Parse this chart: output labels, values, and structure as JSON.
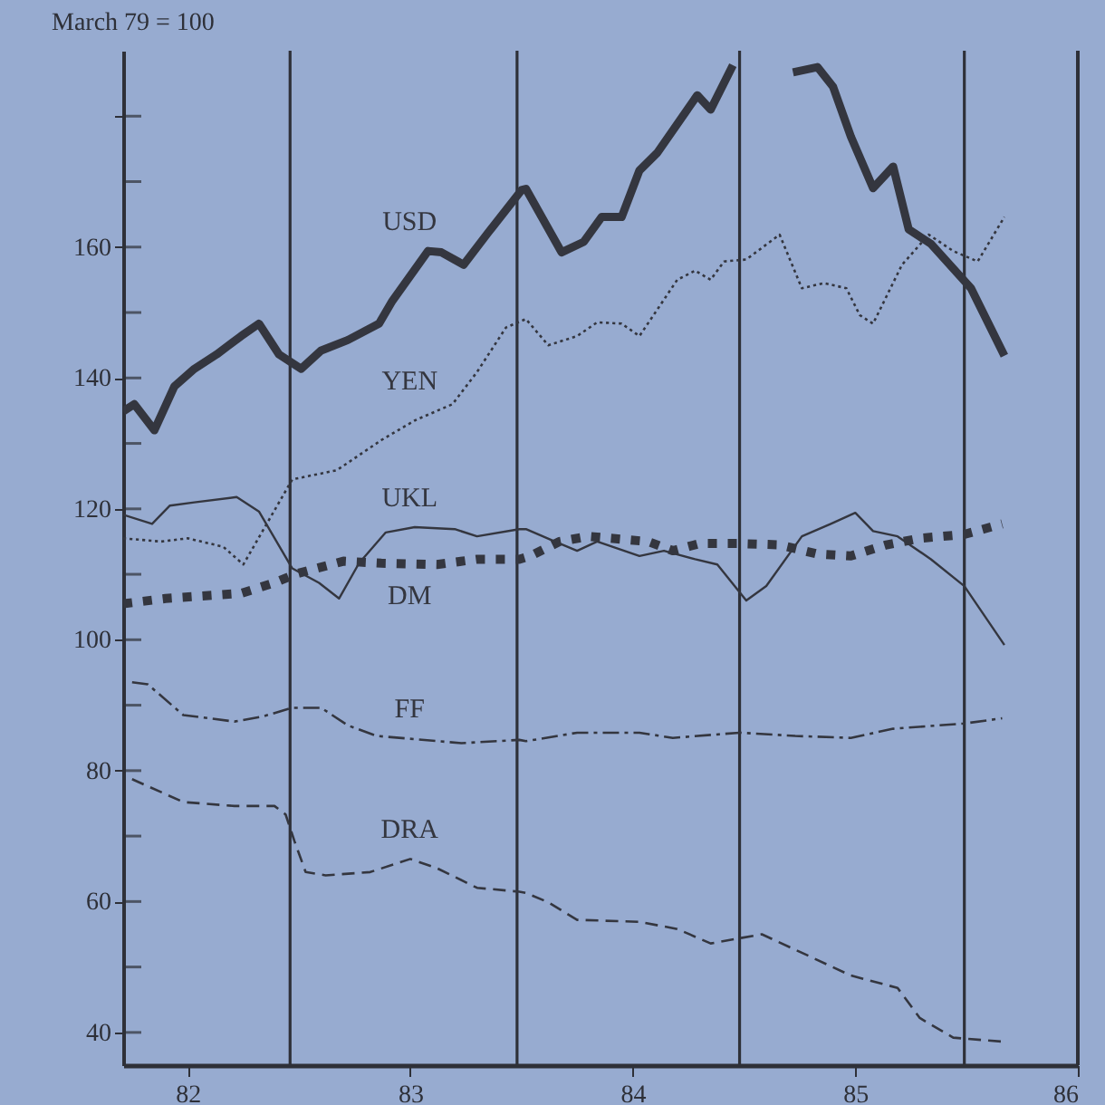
{
  "chart_data": {
    "type": "line",
    "ylabel": "March 79 = 100",
    "legend": false,
    "grid": false,
    "xlim": [
      81.71,
      86
    ],
    "ylim": [
      35,
      190
    ],
    "xticks": [
      82,
      83,
      84,
      85,
      86
    ],
    "yticks": [
      40,
      {
        "value": 50,
        "label": null
      },
      60,
      {
        "value": 70,
        "label": null
      },
      80,
      {
        "value": 90,
        "label": null
      },
      100,
      {
        "value": 110,
        "label": null
      },
      120,
      {
        "value": 130,
        "label": null
      },
      140,
      {
        "value": 150,
        "label": null
      },
      160,
      {
        "value": 170,
        "label": null
      },
      {
        "value": 180,
        "label": null
      }
    ],
    "ref_lines": [
      {
        "axis": "x",
        "value": 82.46,
        "color": "#2e3038"
      },
      {
        "axis": "x",
        "value": 83.48,
        "color": "#2e3038"
      },
      {
        "axis": "x",
        "value": 84.48,
        "color": "#2e3038"
      },
      {
        "axis": "x",
        "value": 85.49,
        "color": "#2e3038"
      }
    ],
    "series": [
      {
        "name": "USD",
        "color": "#34363f",
        "line_style": "solid",
        "x": [
          81.71,
          81.76,
          81.85,
          81.94,
          82.03,
          82.13,
          82.24,
          82.32,
          82.41,
          82.51,
          82.6,
          82.72,
          82.86,
          82.92,
          83.08,
          83.14,
          83.24,
          83.35,
          83.5,
          83.52,
          83.68,
          83.78,
          83.86,
          83.95,
          84.03,
          84.11,
          84.29,
          84.35,
          84.45,
          84.51,
          84.6,
          84.7,
          84.72,
          84.83,
          84.9,
          84.98,
          85.08,
          85.17,
          85.24,
          85.34,
          85.52,
          85.67
        ],
        "values": [
          134.9,
          136,
          132,
          138.7,
          141.4,
          143.6,
          146.4,
          148.3,
          143.6,
          141.4,
          144.2,
          145.8,
          148.3,
          151.8,
          159.4,
          159.2,
          157.3,
          162.2,
          168.7,
          168.9,
          159.2,
          160.8,
          164.6,
          164.6,
          171.7,
          174.4,
          183.2,
          181,
          187.8,
          null,
          null,
          null,
          186.7,
          187.5,
          184.5,
          176.9,
          169,
          172.3,
          162.7,
          160.5,
          153.7,
          143.4
        ]
      },
      {
        "name": "YEN",
        "color": "#34363f",
        "line_style": "dotted",
        "x": [
          81.71,
          81.88,
          82,
          82.16,
          82.25,
          82.47,
          82.67,
          82.87,
          83.02,
          83.19,
          83.3,
          83.43,
          83.52,
          83.62,
          83.75,
          83.84,
          83.95,
          84.03,
          84.2,
          84.28,
          84.35,
          84.41,
          84.51,
          84.66,
          84.76,
          84.86,
          84.96,
          85.02,
          85.08,
          85.21,
          85.33,
          85.44,
          85.55,
          85.67
        ],
        "values": [
          115.5,
          115,
          115.5,
          114.2,
          111.5,
          124.5,
          125.9,
          130.5,
          133.5,
          136,
          140.9,
          147.7,
          149,
          145,
          146.4,
          148.5,
          148.3,
          146.4,
          155,
          156.4,
          155,
          157.8,
          158.1,
          161.9,
          153.7,
          154.5,
          153.7,
          149.6,
          148.3,
          157.3,
          161.9,
          159.4,
          157.8,
          164.6
        ]
      },
      {
        "name": "UKL",
        "color": "#34363f",
        "line_style": "solid",
        "x": [
          81.71,
          81.84,
          81.92,
          82.03,
          82.22,
          82.32,
          82.47,
          82.59,
          82.68,
          82.77,
          82.89,
          83.02,
          83.2,
          83.3,
          83.49,
          83.52,
          83.65,
          83.75,
          83.84,
          84.03,
          84.14,
          84.28,
          84.38,
          84.51,
          84.6,
          84.76,
          84.89,
          85,
          85.08,
          85.19,
          85.34,
          85.49,
          85.67
        ],
        "values": [
          119.1,
          117.7,
          120.5,
          121,
          121.8,
          119.6,
          110.9,
          108.7,
          106.3,
          111.7,
          116.4,
          117.2,
          116.9,
          115.8,
          116.9,
          116.9,
          115,
          113.6,
          115,
          112.8,
          113.6,
          112.3,
          111.5,
          106,
          108.2,
          115.8,
          117.7,
          119.4,
          116.6,
          115.8,
          112.3,
          108.2,
          99.2
        ]
      },
      {
        "name": "DM",
        "color": "#34363f",
        "line_style": "dotted",
        "x": [
          81.71,
          81.9,
          82.24,
          82.39,
          82.49,
          82.7,
          82.87,
          83.12,
          83.3,
          83.49,
          83.54,
          83.67,
          83.8,
          84.07,
          84.18,
          84.3,
          84.48,
          84.66,
          84.83,
          84.98,
          85.14,
          85.29,
          85.49,
          85.66
        ],
        "values": [
          105.5,
          106.3,
          107.1,
          108.7,
          110.1,
          112,
          111.7,
          111.5,
          112.3,
          112.3,
          112.8,
          115,
          115.8,
          115,
          113.6,
          114.7,
          114.7,
          114.5,
          113.1,
          112.8,
          114.5,
          115.5,
          116.1,
          117.7
        ]
      },
      {
        "name": "FF",
        "color": "#34363f",
        "line_style": "dashdot",
        "x": [
          81.75,
          81.82,
          81.98,
          82.21,
          82.34,
          82.47,
          82.6,
          82.72,
          82.85,
          83.23,
          83.49,
          83.52,
          83.75,
          84.03,
          84.18,
          84.48,
          84.73,
          84.98,
          85.17,
          85.49,
          85.66
        ],
        "values": [
          93.5,
          93.2,
          88.5,
          87.5,
          88.3,
          89.6,
          89.6,
          86.9,
          85.3,
          84.2,
          84.7,
          84.5,
          85.8,
          85.8,
          85,
          85.8,
          85.3,
          85,
          86.4,
          87.2,
          88
        ]
      },
      {
        "name": "DRA",
        "color": "#34363f",
        "line_style": "dashed",
        "x": [
          81.75,
          81.98,
          82.21,
          82.39,
          82.44,
          82.48,
          82.53,
          82.62,
          82.82,
          83,
          83.12,
          83.3,
          83.49,
          83.52,
          83.62,
          83.75,
          84.03,
          84.2,
          84.35,
          84.58,
          84.79,
          84.98,
          85.19,
          85.29,
          85.44,
          85.66
        ],
        "values": [
          78.7,
          75.2,
          74.6,
          74.6,
          73.3,
          69.2,
          64.5,
          64,
          64.5,
          66.5,
          65.1,
          62.1,
          61.5,
          61.3,
          59.9,
          57.2,
          56.9,
          55.8,
          53.6,
          55,
          51.7,
          48.7,
          46.8,
          42.2,
          39.2,
          38.6
        ]
      }
    ]
  }
}
